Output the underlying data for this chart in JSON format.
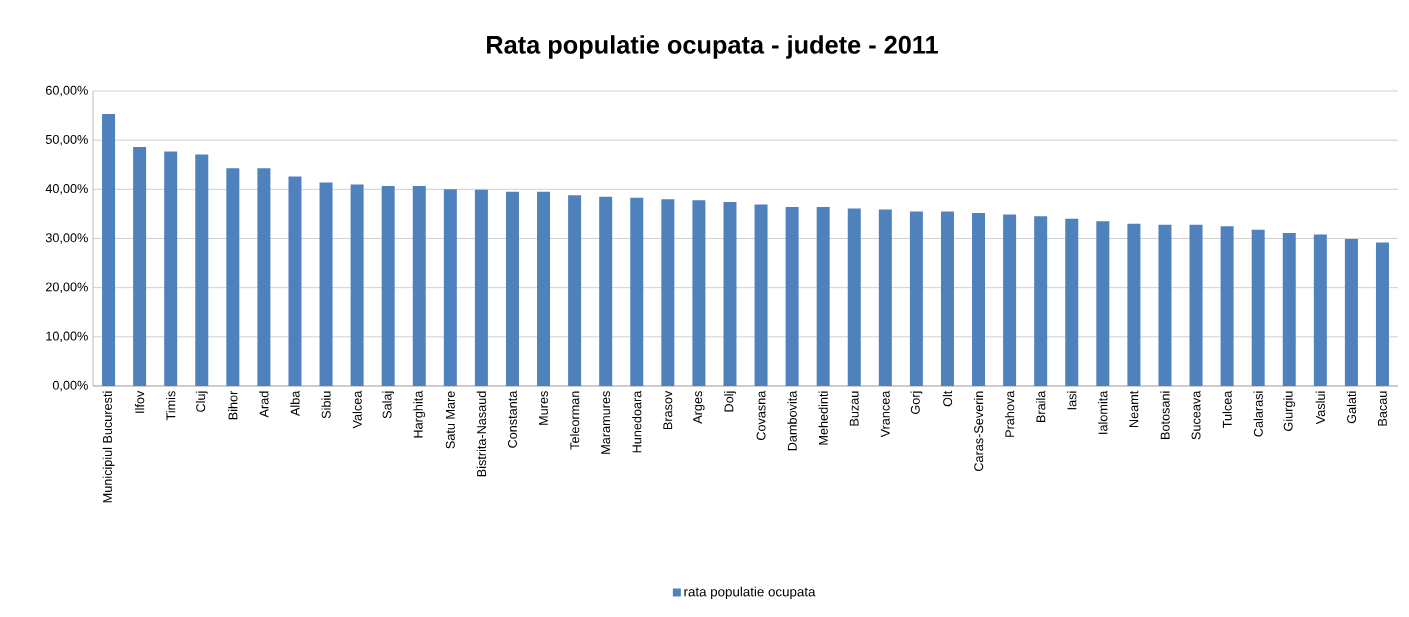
{
  "chart_data": {
    "type": "bar",
    "title": "Rata populatie ocupata - judete - 2011",
    "categories": [
      "Municipiul Bucuresti",
      "Ilfov",
      "Timis",
      "Cluj",
      "Bihor",
      "Arad",
      "Alba",
      "Sibiu",
      "Valcea",
      "Salaj",
      "Harghita",
      "Satu Mare",
      "Bistrita-Nasaud",
      "Constanta",
      "Mures",
      "Teleorman",
      "Maramures",
      "Hunedoara",
      "Brasov",
      "Arges",
      "Dolj",
      "Covasna",
      "Dambovita",
      "Mehedinti",
      "Buzau",
      "Vrancea",
      "Gorj",
      "Olt",
      "Caras-Severin",
      "Prahova",
      "Braila",
      "Iasi",
      "Ialomita",
      "Neamt",
      "Botosani",
      "Suceava",
      "Tulcea",
      "Calarasi",
      "Giurgiu",
      "Vaslui",
      "Galati",
      "Bacau"
    ],
    "series": [
      {
        "name": "rata populatie ocupata",
        "color": "#4f81bd",
        "values": [
          55.3,
          48.6,
          47.7,
          47.1,
          44.3,
          44.3,
          42.6,
          41.4,
          41.0,
          40.7,
          40.7,
          40.0,
          39.9,
          39.5,
          39.5,
          38.8,
          38.5,
          38.3,
          38.0,
          37.8,
          37.4,
          36.9,
          36.4,
          36.4,
          36.1,
          35.9,
          35.5,
          35.5,
          35.2,
          34.9,
          34.5,
          34.0,
          33.5,
          33.0,
          32.8,
          32.8,
          32.5,
          31.8,
          31.1,
          30.8,
          29.9,
          29.2
        ]
      }
    ],
    "ylim": [
      0,
      60
    ],
    "yticks": [
      {
        "value": 0,
        "label": "0,00%"
      },
      {
        "value": 10,
        "label": "10,00%"
      },
      {
        "value": 20,
        "label": "20,00%"
      },
      {
        "value": 30,
        "label": "30,00%"
      },
      {
        "value": 40,
        "label": "40,00%"
      },
      {
        "value": 50,
        "label": "50,00%"
      },
      {
        "value": 60,
        "label": "60,00%"
      }
    ],
    "grid": "y",
    "legend": "bottom"
  }
}
